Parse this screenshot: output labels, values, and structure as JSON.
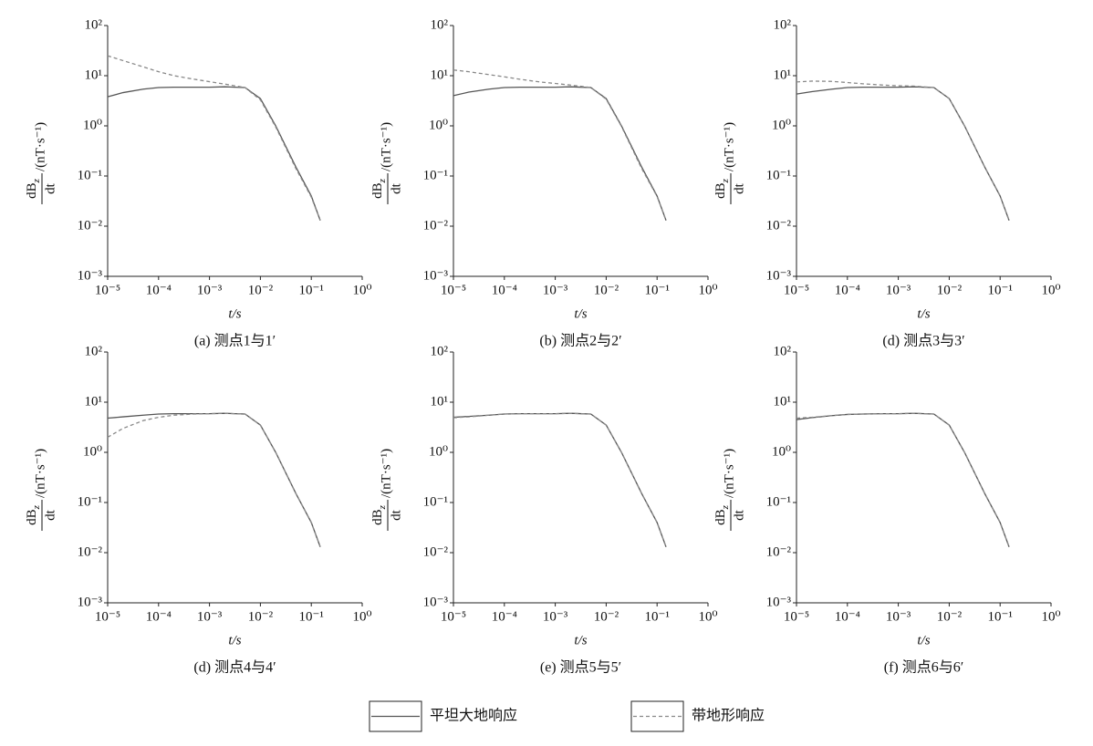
{
  "chart_data": [
    {
      "type": "line",
      "caption": "(a) 测点1与1′",
      "xlabel": "t/s",
      "ylabel": {
        "numerator": "dB",
        "subscript": "z",
        "denominator": "dt",
        "unit": "/(nT·s⁻¹)"
      },
      "xlog": true,
      "ylog": true,
      "xlim": [
        1e-05,
        1
      ],
      "ylim": [
        0.001,
        100
      ],
      "xticks": [
        {
          "value": 1e-05,
          "label": "10⁻⁵"
        },
        {
          "value": 0.0001,
          "label": "10⁻⁴"
        },
        {
          "value": 0.001,
          "label": "10⁻³"
        },
        {
          "value": 0.01,
          "label": "10⁻²"
        },
        {
          "value": 0.1,
          "label": "10⁻¹"
        },
        {
          "value": 1,
          "label": "10⁰"
        }
      ],
      "yticks": [
        {
          "value": 0.001,
          "label": "10⁻³"
        },
        {
          "value": 0.01,
          "label": "10⁻²"
        },
        {
          "value": 0.1,
          "label": "10⁻¹"
        },
        {
          "value": 1,
          "label": "10⁰"
        },
        {
          "value": 10,
          "label": "10¹"
        },
        {
          "value": 100,
          "label": "10²"
        }
      ],
      "x": [
        1e-05,
        2e-05,
        5e-05,
        0.0001,
        0.0002,
        0.0005,
        0.001,
        0.002,
        0.005,
        0.01,
        0.02,
        0.05,
        0.1,
        0.15
      ],
      "series": [
        {
          "values": [
            3.8,
            4.6,
            5.4,
            5.8,
            5.9,
            5.9,
            5.9,
            6.0,
            5.8,
            3.5,
            1.0,
            0.15,
            0.04,
            0.013
          ]
        },
        {
          "values": [
            25,
            20,
            15,
            12,
            10,
            8.5,
            7.6,
            6.8,
            5.8,
            3.3,
            0.95,
            0.14,
            0.038,
            0.013
          ]
        }
      ]
    },
    {
      "type": "line",
      "caption": "(b) 测点2与2′",
      "xlabel": "t/s",
      "ylabel": {
        "numerator": "dB",
        "subscript": "z",
        "denominator": "dt",
        "unit": "/(nT·s⁻¹)"
      },
      "xlog": true,
      "ylog": true,
      "xlim": [
        1e-05,
        1
      ],
      "ylim": [
        0.001,
        100
      ],
      "xticks": [
        {
          "value": 1e-05,
          "label": "10⁻⁵"
        },
        {
          "value": 0.0001,
          "label": "10⁻⁴"
        },
        {
          "value": 0.001,
          "label": "10⁻³"
        },
        {
          "value": 0.01,
          "label": "10⁻²"
        },
        {
          "value": 0.1,
          "label": "10⁻¹"
        },
        {
          "value": 1,
          "label": "10⁰"
        }
      ],
      "yticks": [
        {
          "value": 0.001,
          "label": "10⁻³"
        },
        {
          "value": 0.01,
          "label": "10⁻²"
        },
        {
          "value": 0.1,
          "label": "10⁻¹"
        },
        {
          "value": 1,
          "label": "10⁰"
        },
        {
          "value": 10,
          "label": "10¹"
        },
        {
          "value": 100,
          "label": "10²"
        }
      ],
      "x": [
        1e-05,
        2e-05,
        5e-05,
        0.0001,
        0.0002,
        0.0005,
        0.001,
        0.002,
        0.005,
        0.01,
        0.02,
        0.05,
        0.1,
        0.15
      ],
      "series": [
        {
          "values": [
            4.0,
            4.7,
            5.4,
            5.8,
            5.9,
            5.9,
            5.9,
            6.0,
            5.8,
            3.5,
            1.0,
            0.15,
            0.04,
            0.013
          ]
        },
        {
          "values": [
            13,
            12,
            10.5,
            9.5,
            8.5,
            7.5,
            7.0,
            6.5,
            5.8,
            3.4,
            0.97,
            0.14,
            0.039,
            0.013
          ]
        }
      ]
    },
    {
      "type": "line",
      "caption": "(d) 测点3与3′",
      "xlabel": "t/s",
      "ylabel": {
        "numerator": "dB",
        "subscript": "z",
        "denominator": "dt",
        "unit": "/(nT·s⁻¹)"
      },
      "xlog": true,
      "ylog": true,
      "xlim": [
        1e-05,
        1
      ],
      "ylim": [
        0.001,
        100
      ],
      "xticks": [
        {
          "value": 1e-05,
          "label": "10⁻⁵"
        },
        {
          "value": 0.0001,
          "label": "10⁻⁴"
        },
        {
          "value": 0.001,
          "label": "10⁻³"
        },
        {
          "value": 0.01,
          "label": "10⁻²"
        },
        {
          "value": 0.1,
          "label": "10⁻¹"
        },
        {
          "value": 1,
          "label": "10⁰"
        }
      ],
      "yticks": [
        {
          "value": 0.001,
          "label": "10⁻³"
        },
        {
          "value": 0.01,
          "label": "10⁻²"
        },
        {
          "value": 0.1,
          "label": "10⁻¹"
        },
        {
          "value": 1,
          "label": "10⁰"
        },
        {
          "value": 10,
          "label": "10¹"
        },
        {
          "value": 100,
          "label": "10²"
        }
      ],
      "x": [
        1e-05,
        2e-05,
        5e-05,
        0.0001,
        0.0002,
        0.0005,
        0.001,
        0.002,
        0.005,
        0.01,
        0.02,
        0.05,
        0.1,
        0.15
      ],
      "series": [
        {
          "values": [
            4.3,
            4.8,
            5.4,
            5.8,
            5.9,
            5.9,
            5.9,
            6.0,
            5.8,
            3.5,
            1.0,
            0.15,
            0.04,
            0.013
          ]
        },
        {
          "values": [
            7.5,
            7.8,
            7.7,
            7.3,
            6.9,
            6.5,
            6.3,
            6.2,
            5.8,
            3.5,
            1.0,
            0.15,
            0.04,
            0.013
          ]
        }
      ]
    },
    {
      "type": "line",
      "caption": "(d) 测点4与4′",
      "xlabel": "t/s",
      "ylabel": {
        "numerator": "dB",
        "subscript": "z",
        "denominator": "dt",
        "unit": "/(nT·s⁻¹)"
      },
      "xlog": true,
      "ylog": true,
      "xlim": [
        1e-05,
        1
      ],
      "ylim": [
        0.001,
        100
      ],
      "xticks": [
        {
          "value": 1e-05,
          "label": "10⁻⁵"
        },
        {
          "value": 0.0001,
          "label": "10⁻⁴"
        },
        {
          "value": 0.001,
          "label": "10⁻³"
        },
        {
          "value": 0.01,
          "label": "10⁻²"
        },
        {
          "value": 0.1,
          "label": "10⁻¹"
        },
        {
          "value": 1,
          "label": "10⁰"
        }
      ],
      "yticks": [
        {
          "value": 0.001,
          "label": "10⁻³"
        },
        {
          "value": 0.01,
          "label": "10⁻²"
        },
        {
          "value": 0.1,
          "label": "10⁻¹"
        },
        {
          "value": 1,
          "label": "10⁰"
        },
        {
          "value": 10,
          "label": "10¹"
        },
        {
          "value": 100,
          "label": "10²"
        }
      ],
      "x": [
        1e-05,
        2e-05,
        5e-05,
        0.0001,
        0.0002,
        0.0005,
        0.001,
        0.002,
        0.005,
        0.01,
        0.02,
        0.05,
        0.1,
        0.15
      ],
      "series": [
        {
          "values": [
            4.8,
            5.1,
            5.5,
            5.8,
            5.9,
            5.9,
            5.9,
            6.0,
            5.8,
            3.5,
            1.0,
            0.15,
            0.04,
            0.013
          ]
        },
        {
          "values": [
            2.0,
            3.0,
            4.3,
            5.0,
            5.5,
            5.8,
            5.9,
            6.0,
            5.8,
            3.5,
            1.0,
            0.15,
            0.04,
            0.013
          ]
        }
      ]
    },
    {
      "type": "line",
      "caption": "(e) 测点5与5′",
      "xlabel": "t/s",
      "ylabel": {
        "numerator": "dB",
        "subscript": "z",
        "denominator": "dt",
        "unit": "/(nT·s⁻¹)"
      },
      "xlog": true,
      "ylog": true,
      "xlim": [
        1e-05,
        1
      ],
      "ylim": [
        0.001,
        100
      ],
      "xticks": [
        {
          "value": 1e-05,
          "label": "10⁻⁵"
        },
        {
          "value": 0.0001,
          "label": "10⁻⁴"
        },
        {
          "value": 0.001,
          "label": "10⁻³"
        },
        {
          "value": 0.01,
          "label": "10⁻²"
        },
        {
          "value": 0.1,
          "label": "10⁻¹"
        },
        {
          "value": 1,
          "label": "10⁰"
        }
      ],
      "yticks": [
        {
          "value": 0.001,
          "label": "10⁻³"
        },
        {
          "value": 0.01,
          "label": "10⁻²"
        },
        {
          "value": 0.1,
          "label": "10⁻¹"
        },
        {
          "value": 1,
          "label": "10⁰"
        },
        {
          "value": 10,
          "label": "10¹"
        },
        {
          "value": 100,
          "label": "10²"
        }
      ],
      "x": [
        1e-05,
        2e-05,
        5e-05,
        0.0001,
        0.0002,
        0.0005,
        0.001,
        0.002,
        0.005,
        0.01,
        0.02,
        0.05,
        0.1,
        0.15
      ],
      "series": [
        {
          "values": [
            5.0,
            5.2,
            5.5,
            5.8,
            5.9,
            5.9,
            5.9,
            6.0,
            5.8,
            3.5,
            1.0,
            0.15,
            0.04,
            0.013
          ]
        },
        {
          "values": [
            4.9,
            5.1,
            5.5,
            5.8,
            5.9,
            5.9,
            5.9,
            6.0,
            5.8,
            3.5,
            1.0,
            0.15,
            0.04,
            0.013
          ]
        }
      ]
    },
    {
      "type": "line",
      "caption": "(f) 测点6与6′",
      "xlabel": "t/s",
      "ylabel": {
        "numerator": "dB",
        "subscript": "z",
        "denominator": "dt",
        "unit": "/(nT·s⁻¹)"
      },
      "xlog": true,
      "ylog": true,
      "xlim": [
        1e-05,
        1
      ],
      "ylim": [
        0.001,
        100
      ],
      "xticks": [
        {
          "value": 1e-05,
          "label": "10⁻⁵"
        },
        {
          "value": 0.0001,
          "label": "10⁻⁴"
        },
        {
          "value": 0.001,
          "label": "10⁻³"
        },
        {
          "value": 0.01,
          "label": "10⁻²"
        },
        {
          "value": 0.1,
          "label": "10⁻¹"
        },
        {
          "value": 1,
          "label": "10⁰"
        }
      ],
      "yticks": [
        {
          "value": 0.001,
          "label": "10⁻³"
        },
        {
          "value": 0.01,
          "label": "10⁻²"
        },
        {
          "value": 0.1,
          "label": "10⁻¹"
        },
        {
          "value": 1,
          "label": "10⁰"
        },
        {
          "value": 10,
          "label": "10¹"
        },
        {
          "value": 100,
          "label": "10²"
        }
      ],
      "x": [
        1e-05,
        2e-05,
        5e-05,
        0.0001,
        0.0002,
        0.0005,
        0.001,
        0.002,
        0.005,
        0.01,
        0.02,
        0.05,
        0.1,
        0.15
      ],
      "series": [
        {
          "values": [
            4.5,
            4.9,
            5.4,
            5.7,
            5.8,
            5.9,
            5.9,
            6.0,
            5.8,
            3.5,
            1.0,
            0.15,
            0.04,
            0.013
          ]
        },
        {
          "values": [
            4.8,
            5.0,
            5.4,
            5.7,
            5.8,
            5.9,
            5.9,
            6.0,
            5.8,
            3.5,
            1.0,
            0.15,
            0.04,
            0.013
          ]
        }
      ]
    }
  ],
  "legend": [
    {
      "name": "平坦大地响应",
      "color": "#555555",
      "style": "solid"
    },
    {
      "name": "带地形响应",
      "color": "#888888",
      "style": "dashed"
    }
  ]
}
